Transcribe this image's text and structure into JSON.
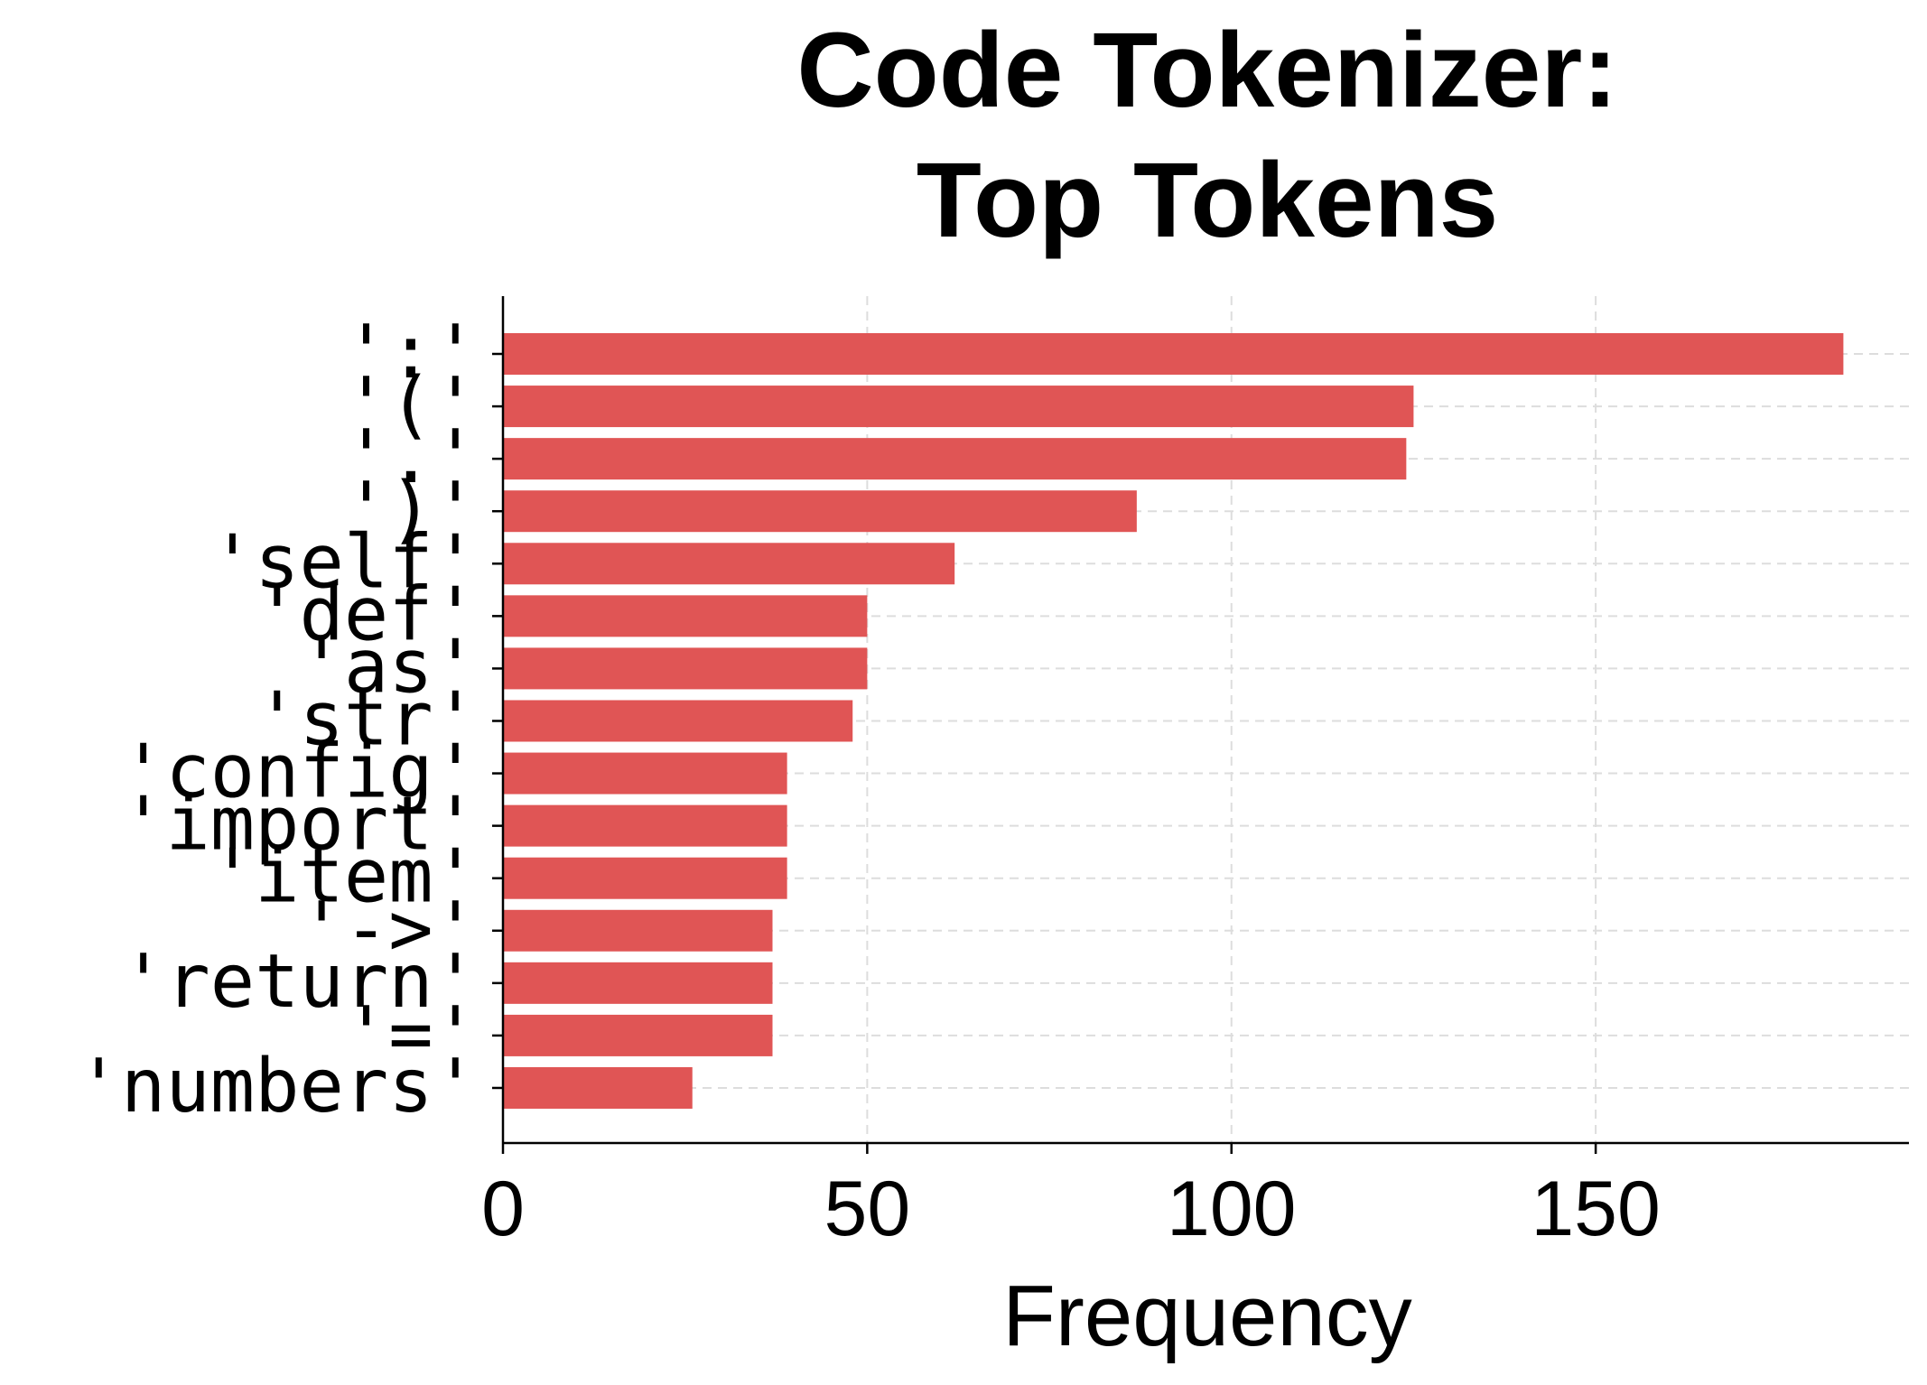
{
  "chart_data": {
    "type": "bar",
    "orientation": "horizontal",
    "title_lines": [
      "Code Tokenizer:",
      "Top Tokens"
    ],
    "xlabel": "Frequency",
    "ylabel": "",
    "xlim": [
      0,
      193
    ],
    "xticks": [
      0,
      50,
      100,
      150
    ],
    "grid": true,
    "bar_color": "#e05555",
    "categories": [
      "':'",
      "'('",
      "'.'",
      "')'",
      "'self'",
      "'def'",
      "'as'",
      "'str'",
      "'config'",
      "'import'",
      "'item'",
      "'->'",
      "'return'",
      "'='",
      "'numbers'"
    ],
    "values": [
      184,
      125,
      124,
      87,
      62,
      50,
      50,
      48,
      39,
      39,
      39,
      37,
      37,
      37,
      26
    ]
  }
}
